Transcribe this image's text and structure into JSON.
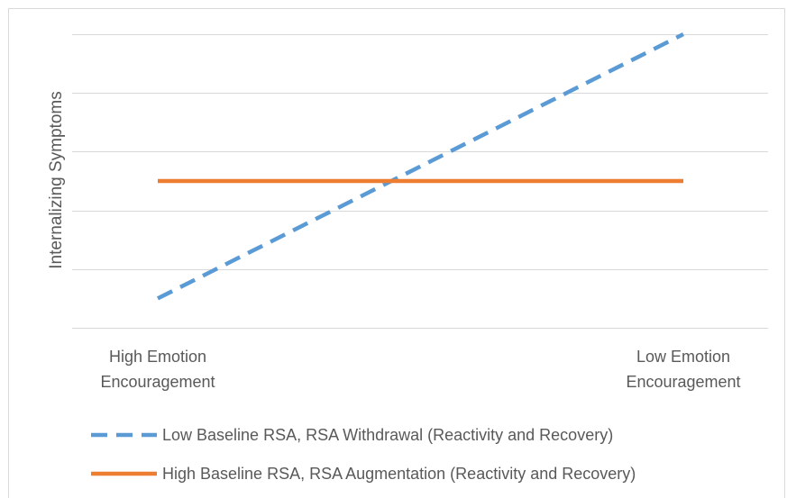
{
  "chart_data": {
    "type": "line",
    "title": "",
    "ylabel": "Internalizing Symptoms",
    "xlabel": "",
    "categories": [
      "High Emotion Encouragement",
      "Low Emotion Encouragement"
    ],
    "category_lines": [
      [
        "High Emotion",
        "Encouragement"
      ],
      [
        "Low Emotion",
        "Encouragement"
      ]
    ],
    "ylim": [
      0,
      5
    ],
    "y_gridlines": [
      1,
      2,
      3,
      4,
      5
    ],
    "y_tick_labels": false,
    "grid": true,
    "legend_position": "bottom",
    "series": [
      {
        "name": "Low Baseline RSA, RSA Withdrawal (Reactivity and Recovery)",
        "values": [
          0.5,
          5.0
        ],
        "color": "#5b9bd5",
        "dash": "dashed"
      },
      {
        "name": "High Baseline RSA, RSA Augmentation (Reactivity and Recovery)",
        "values": [
          2.5,
          2.5
        ],
        "color": "#ed7d31",
        "dash": "solid"
      }
    ]
  },
  "colors": {
    "border": "#d9d9d9",
    "gridline": "#d9d9d9",
    "axis_text": "#595959"
  }
}
